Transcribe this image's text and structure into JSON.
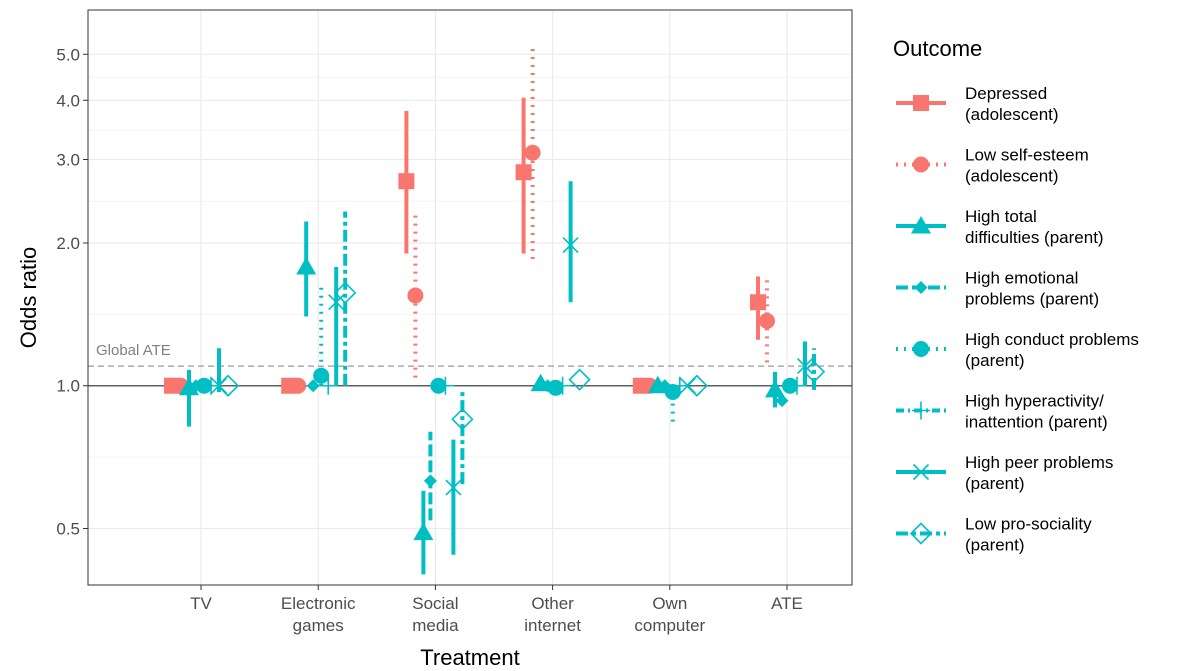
{
  "chart_data": {
    "type": "scatter",
    "subtype": "forest-plot-with-error-bars",
    "xlabel": "Treatment",
    "ylabel": "Odds ratio",
    "y_scale": "log",
    "ylim": [
      0.38,
      6.2
    ],
    "y_ticks": [
      {
        "value": 0.5,
        "label": "0.5"
      },
      {
        "value": 1.0,
        "label": "1.0"
      },
      {
        "value": 2.0,
        "label": "2.0"
      },
      {
        "value": 3.0,
        "label": "3.0"
      },
      {
        "value": 4.0,
        "label": "4.0"
      },
      {
        "value": 5.0,
        "label": "5.0"
      }
    ],
    "categories": [
      {
        "label": "TV",
        "lines": [
          "TV"
        ]
      },
      {
        "label": "Electronic games",
        "lines": [
          "Electronic",
          "games"
        ]
      },
      {
        "label": "Social media",
        "lines": [
          "Social",
          "media"
        ]
      },
      {
        "label": "Other internet",
        "lines": [
          "Other",
          "internet"
        ]
      },
      {
        "label": "Own computer",
        "lines": [
          "Own",
          "computer"
        ]
      },
      {
        "label": "ATE",
        "lines": [
          "ATE"
        ]
      }
    ],
    "reference_lines": [
      {
        "value": 1.0,
        "style": "solid",
        "color": "#5f5f5f"
      },
      {
        "value": 1.1,
        "style": "dashed",
        "color": "#9a9a9a",
        "label": "Global ATE"
      }
    ],
    "grid": true,
    "legend": {
      "title": "Outcome",
      "position": "right"
    },
    "series": [
      {
        "name": "Depressed (adolescent)",
        "legend_lines": [
          "Depressed",
          "(adolescent)"
        ],
        "color": "#F8766D",
        "shape": "square",
        "linetype": "solid",
        "points": [
          [
            1.0,
            1.0,
            1.0
          ],
          [
            1.0,
            1.0,
            1.0
          ],
          [
            2.7,
            1.9,
            3.8
          ],
          [
            2.82,
            1.9,
            4.05
          ],
          [
            1.0,
            1.0,
            1.0
          ],
          [
            1.5,
            1.25,
            1.7
          ]
        ]
      },
      {
        "name": "Low self-esteem (adolescent)",
        "legend_lines": [
          "Low self-esteem",
          "(adolescent)"
        ],
        "color": "#F8766D",
        "shape": "circle",
        "linetype": "dotted",
        "points": [
          [
            1.0,
            1.0,
            1.0
          ],
          [
            1.0,
            1.0,
            1.0
          ],
          [
            1.55,
            1.04,
            2.3
          ],
          [
            3.1,
            1.85,
            5.2
          ],
          [
            1.0,
            1.0,
            1.0
          ],
          [
            1.37,
            1.12,
            1.7
          ]
        ]
      },
      {
        "name": "High total difficulties (parent)",
        "legend_lines": [
          "High total",
          "difficulties (parent)"
        ],
        "color": "#00BFC4",
        "shape": "triangle",
        "linetype": "solid",
        "points": [
          [
            0.99,
            0.82,
            1.08
          ],
          [
            1.78,
            1.4,
            2.22
          ],
          [
            0.49,
            0.4,
            0.6
          ],
          [
            1.01,
            1.01,
            1.01
          ],
          [
            1.0,
            1.0,
            1.0
          ],
          [
            0.98,
            0.9,
            1.07
          ]
        ]
      },
      {
        "name": "High emotional problems (parent)",
        "legend_lines": [
          "High emotional",
          "problems (parent)"
        ],
        "color": "#00BFC4",
        "shape": "diamond",
        "linetype": "longdash",
        "points": [
          [
            1.0,
            1.0,
            1.0
          ],
          [
            1.0,
            1.0,
            1.0
          ],
          [
            0.63,
            0.52,
            0.8
          ],
          [
            1.0,
            1.0,
            1.0
          ],
          [
            1.0,
            1.0,
            1.0
          ],
          [
            0.93,
            0.93,
            0.93
          ]
        ]
      },
      {
        "name": "High conduct problems (parent)",
        "legend_lines": [
          "High conduct problems",
          "(parent)"
        ],
        "color": "#00BFC4",
        "shape": "circle",
        "linetype": "dotted",
        "points": [
          [
            1.0,
            1.0,
            1.0
          ],
          [
            1.05,
            1.0,
            1.62
          ],
          [
            1.0,
            1.0,
            1.0
          ],
          [
            0.99,
            0.99,
            0.99
          ],
          [
            0.97,
            0.84,
            1.02
          ],
          [
            1.0,
            0.97,
            1.03
          ]
        ]
      },
      {
        "name": "High hyperactivity/ inattention (parent)",
        "legend_lines": [
          "High hyperactivity/",
          "inattention (parent)"
        ],
        "color": "#00BFC4",
        "shape": "plus",
        "linetype": "dotdash",
        "points": [
          [
            1.0,
            1.0,
            1.0
          ],
          [
            1.0,
            1.0,
            1.0
          ],
          [
            1.0,
            1.0,
            1.0
          ],
          [
            1.0,
            1.0,
            1.0
          ],
          [
            1.0,
            1.0,
            1.0
          ],
          [
            1.0,
            1.0,
            1.0
          ]
        ]
      },
      {
        "name": "High peer problems (parent)",
        "legend_lines": [
          "High peer problems",
          "(parent)"
        ],
        "color": "#00BFC4",
        "shape": "cross",
        "linetype": "solid",
        "points": [
          [
            1.0,
            0.97,
            1.2
          ],
          [
            1.5,
            1.0,
            1.78
          ],
          [
            0.61,
            0.44,
            0.77
          ],
          [
            1.98,
            1.5,
            2.7
          ],
          [
            1.0,
            1.0,
            1.0
          ],
          [
            1.1,
            1.0,
            1.24
          ]
        ]
      },
      {
        "name": "Low pro-sociality (parent)",
        "legend_lines": [
          "Low pro-sociality",
          "(parent)"
        ],
        "color": "#00BFC4",
        "shape": "open-diamond",
        "linetype": "twodash",
        "points": [
          [
            1.0,
            1.0,
            1.0
          ],
          [
            1.57,
            1.0,
            2.33
          ],
          [
            0.85,
            0.62,
            0.98
          ],
          [
            1.03,
            1.03,
            1.03
          ],
          [
            1.0,
            1.0,
            1.0
          ],
          [
            1.07,
            0.98,
            1.2
          ]
        ]
      }
    ]
  }
}
